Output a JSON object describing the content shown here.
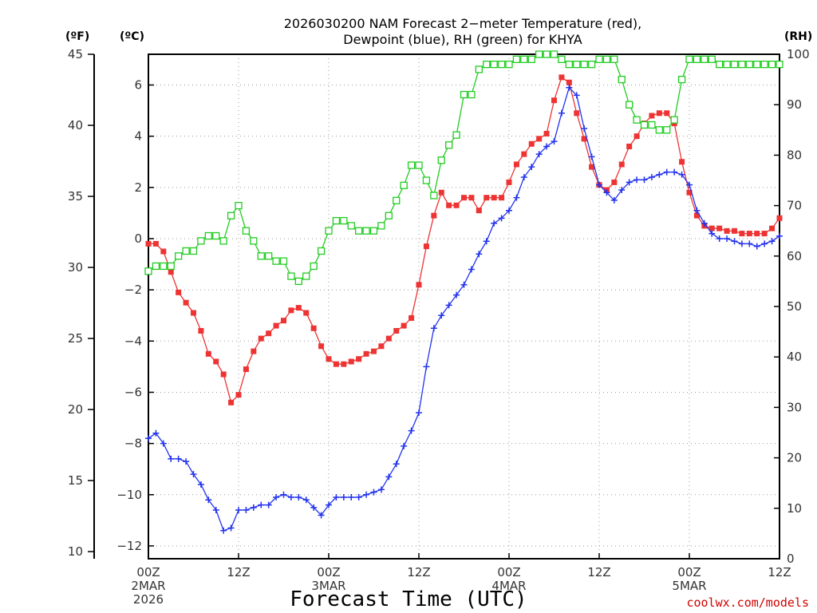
{
  "chart_data": {
    "type": "line",
    "title_lines": [
      "2026030200 NAM Forecast 2−meter Temperature (red),",
      "Dewpoint (blue), RH (green) for KHYA"
    ],
    "xlabel": "Forecast Time (UTC)",
    "credit": "coolwx.com/models",
    "units": {
      "fahrenheit": "(ºF)",
      "celsius": "(ºC)",
      "rh": "(RH)"
    },
    "x_range_hours": [
      0,
      84
    ],
    "celsius_axis": {
      "ylim": [
        -12.5,
        7.2
      ],
      "ticks": [
        -12,
        -10,
        -8,
        -6,
        -4,
        -2,
        0,
        2,
        4,
        6
      ],
      "tick_labels": [
        "−12",
        "−10",
        "−8",
        "−6",
        "−4",
        "−2",
        "0",
        "2",
        "4",
        "6"
      ]
    },
    "fahrenheit_axis": {
      "ylim": [
        9.5,
        45
      ],
      "ticks": [
        10,
        15,
        20,
        25,
        30,
        35,
        40,
        45
      ],
      "tick_labels": [
        "10",
        "15",
        "20",
        "25",
        "30",
        "35",
        "40",
        "45"
      ]
    },
    "rh_axis": {
      "ylim": [
        0,
        100
      ],
      "ticks": [
        0,
        10,
        20,
        30,
        40,
        50,
        60,
        70,
        80,
        90,
        100
      ],
      "tick_labels": [
        "0",
        "10",
        "20",
        "30",
        "40",
        "50",
        "60",
        "70",
        "80",
        "90",
        "100"
      ]
    },
    "x_ticks": [
      {
        "hour": 0,
        "lines": [
          "00Z",
          "2MAR",
          "2026"
        ]
      },
      {
        "hour": 12,
        "lines": [
          "12Z"
        ]
      },
      {
        "hour": 24,
        "lines": [
          "00Z",
          "3MAR"
        ]
      },
      {
        "hour": 36,
        "lines": [
          "12Z"
        ]
      },
      {
        "hour": 48,
        "lines": [
          "00Z",
          "4MAR"
        ]
      },
      {
        "hour": 60,
        "lines": [
          "12Z"
        ]
      },
      {
        "hour": 72,
        "lines": [
          "00Z",
          "5MAR"
        ]
      },
      {
        "hour": 84,
        "lines": [
          "12Z"
        ]
      }
    ],
    "grid": true,
    "series": [
      {
        "name": "Temperature",
        "color": "#ee3333",
        "marker": "filled-square",
        "axis": "celsius",
        "values": [
          -0.2,
          -0.2,
          -0.5,
          -1.3,
          -2.1,
          -2.5,
          -2.9,
          -3.6,
          -4.5,
          -4.8,
          -5.3,
          -6.4,
          -6.1,
          -5.1,
          -4.4,
          -3.9,
          -3.7,
          -3.4,
          -3.2,
          -2.8,
          -2.7,
          -2.9,
          -3.5,
          -4.2,
          -4.7,
          -4.9,
          -4.9,
          -4.8,
          -4.7,
          -4.5,
          -4.4,
          -4.2,
          -3.9,
          -3.6,
          -3.4,
          -3.1,
          -1.8,
          -0.3,
          0.9,
          1.8,
          1.3,
          1.3,
          1.6,
          1.6,
          1.1,
          1.6,
          1.6,
          1.6,
          2.2,
          2.9,
          3.3,
          3.7,
          3.9,
          4.1,
          5.4,
          6.3,
          6.1,
          4.9,
          3.9,
          2.8,
          2.1,
          1.9,
          2.2,
          2.9,
          3.6,
          4.0,
          4.5,
          4.8,
          4.9,
          4.9,
          4.5,
          3.0,
          1.8,
          0.9,
          0.5,
          0.4,
          0.4,
          0.3,
          0.3,
          0.2,
          0.2,
          0.2,
          0.2,
          0.4,
          0.8
        ]
      },
      {
        "name": "Dewpoint",
        "color": "#2233ee",
        "marker": "plus",
        "axis": "celsius",
        "values": [
          -7.8,
          -7.6,
          -8.0,
          -8.6,
          -8.6,
          -8.7,
          -9.2,
          -9.6,
          -10.2,
          -10.6,
          -11.4,
          -11.3,
          -10.6,
          -10.6,
          -10.5,
          -10.4,
          -10.4,
          -10.1,
          -10.0,
          -10.1,
          -10.1,
          -10.2,
          -10.5,
          -10.8,
          -10.4,
          -10.1,
          -10.1,
          -10.1,
          -10.1,
          -10.0,
          -9.9,
          -9.8,
          -9.3,
          -8.8,
          -8.1,
          -7.5,
          -6.8,
          -5.0,
          -3.5,
          -3.0,
          -2.6,
          -2.2,
          -1.8,
          -1.2,
          -0.6,
          -0.1,
          0.6,
          0.8,
          1.1,
          1.6,
          2.4,
          2.8,
          3.3,
          3.6,
          3.8,
          4.9,
          5.9,
          5.6,
          4.3,
          3.2,
          2.1,
          1.8,
          1.5,
          1.9,
          2.2,
          2.3,
          2.3,
          2.4,
          2.5,
          2.6,
          2.6,
          2.5,
          2.1,
          1.1,
          0.6,
          0.2,
          0.0,
          0.0,
          -0.1,
          -0.2,
          -0.2,
          -0.3,
          -0.2,
          -0.1,
          0.1
        ]
      },
      {
        "name": "RH",
        "color": "#22cc22",
        "marker": "open-square",
        "axis": "rh",
        "values": [
          57,
          58,
          58,
          58,
          60,
          61,
          61,
          63,
          64,
          64,
          63,
          68,
          70,
          65,
          63,
          60,
          60,
          59,
          59,
          56,
          55,
          56,
          58,
          61,
          65,
          67,
          67,
          66,
          65,
          65,
          65,
          66,
          68,
          71,
          74,
          78,
          78,
          75,
          72,
          79,
          82,
          84,
          92,
          92,
          97,
          98,
          98,
          98,
          98,
          99,
          99,
          99,
          100,
          100,
          100,
          99,
          98,
          98,
          98,
          98,
          99,
          99,
          99,
          95,
          90,
          87,
          86,
          86,
          85,
          85,
          87,
          95,
          99,
          99,
          99,
          99,
          98,
          98,
          98,
          98,
          98,
          98,
          98,
          98,
          98
        ]
      }
    ]
  }
}
